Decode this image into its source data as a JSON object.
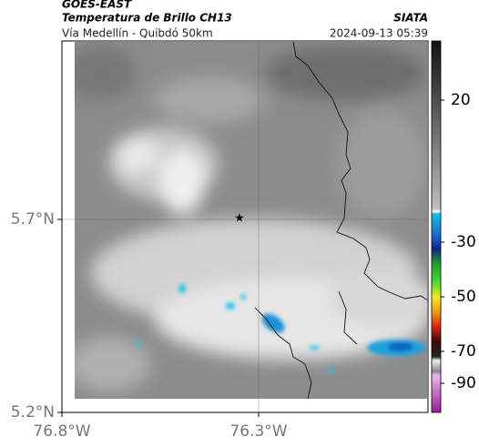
{
  "header": {
    "satellite": "GOES-EAST",
    "product": "Temperatura de Brillo CH13",
    "source": "SIATA",
    "region": "Vía Medellín - Quibdó 50km",
    "timestamp": "2024-09-13 05:39"
  },
  "map": {
    "lat_ticks": [
      {
        "value": 5.7,
        "label": "5.7°N"
      },
      {
        "value": 5.2,
        "label": "5.2°N"
      }
    ],
    "lon_ticks": [
      {
        "value": -76.8,
        "label": "76.8°W"
      },
      {
        "value": -76.3,
        "label": "76.3°W"
      }
    ]
  },
  "colorbar": {
    "ticks": [
      20,
      -30,
      -50,
      -70,
      -90
    ]
  }
}
